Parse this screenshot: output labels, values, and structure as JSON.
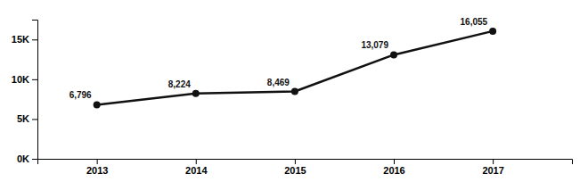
{
  "chart_data": {
    "type": "line",
    "x": [
      2013,
      2014,
      2015,
      2016,
      2017
    ],
    "values": [
      6796,
      8224,
      8469,
      13079,
      16055
    ],
    "value_labels": [
      "6,796",
      "8,224",
      "8,469",
      "13,079",
      "16,055"
    ],
    "data_labels": true,
    "color": "#111111",
    "marker": "circle",
    "xlim": [
      2012.4,
      2017.8
    ],
    "xticks": [
      2013,
      2014,
      2015,
      2016,
      2017
    ],
    "ylim": [
      0,
      17500
    ],
    "yticks": [
      {
        "value": 0,
        "label": "0K"
      },
      {
        "value": 5000,
        "label": "5K"
      },
      {
        "value": 10000,
        "label": "10K"
      },
      {
        "value": 15000,
        "label": "15K"
      }
    ],
    "grid": false
  }
}
